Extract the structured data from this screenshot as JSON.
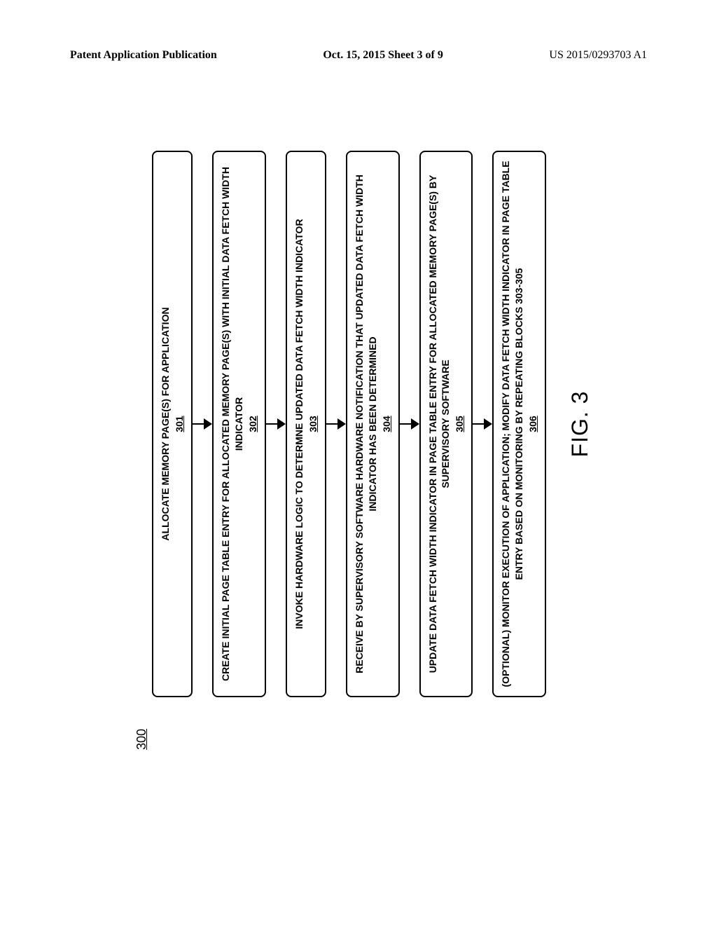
{
  "header": {
    "left": "Patent Application Publication",
    "center": "Oct. 15, 2015  Sheet 3 of 9",
    "right": "US 2015/0293703 A1"
  },
  "diagram": {
    "number": "300",
    "figure_label": "FIG. 3",
    "boxes": [
      {
        "text": "ALLOCATE MEMORY PAGE(S) FOR APPLICATION",
        "ref": "301"
      },
      {
        "text": "CREATE INITIAL PAGE TABLE ENTRY FOR ALLOCATED MEMORY PAGE(S) WITH INITIAL DATA FETCH WIDTH INDICATOR",
        "ref": "302"
      },
      {
        "text": "INVOKE HARDWARE LOGIC TO DETERMNE UPDATED DATA FETCH WIDTH INDICATOR",
        "ref": "303"
      },
      {
        "text": "RECEIVE BY SUPERVISORY SOFTWARE HARDWARE NOTIFICATION THAT UPDATED DATA FETCH WIDTH INDICATOR HAS BEEN DETERMINED",
        "ref": "304"
      },
      {
        "text": "UPDATE DATA FETCH WIDTH INDICATOR IN PAGE TABLE ENTRY FOR ALLOCATED MEMORY PAGE(S) BY SUPERVISORY SOFTWARE",
        "ref": "305"
      },
      {
        "text": "(OPTIONAL) MONITOR EXECUTION OF APPLICATION; MODIFY DATA FETCH WIDTH INDICATOR IN PAGE TABLE ENTRY BASED ON MONITORING BY REPEATING BLOCKS 303-305",
        "ref": "306"
      }
    ]
  }
}
